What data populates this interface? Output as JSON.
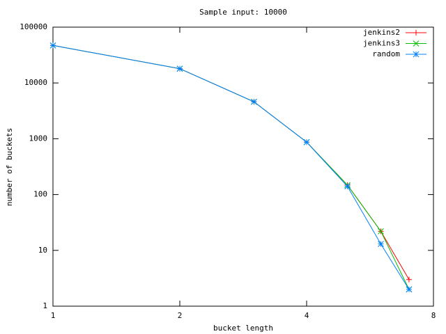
{
  "chart_data": {
    "type": "line",
    "title": "Sample input: 10000",
    "x_label": "bucket length",
    "y_label": "number of buckets",
    "x": [
      1,
      2,
      3,
      4,
      5,
      6,
      7
    ],
    "series": [
      {
        "name": "jenkins2",
        "color": "#ff0000",
        "marker": "plus",
        "values": [
          47000,
          18000,
          4600,
          870,
          148,
          22,
          3
        ]
      },
      {
        "name": "jenkins3",
        "color": "#00c000",
        "marker": "cross",
        "values": [
          47000,
          18000,
          4600,
          870,
          148,
          22,
          2
        ]
      },
      {
        "name": "random",
        "color": "#0080ff",
        "marker": "star",
        "values": [
          47000,
          18000,
          4600,
          870,
          140,
          13,
          2
        ]
      }
    ],
    "xlim": [
      1,
      8
    ],
    "xticks": [
      1,
      2,
      4,
      8
    ],
    "x_log": true,
    "ylim": [
      1,
      100000
    ],
    "yticks": [
      1,
      10,
      100,
      1000,
      10000,
      100000
    ],
    "y_log": true,
    "grid": false,
    "legend": "top-right"
  }
}
